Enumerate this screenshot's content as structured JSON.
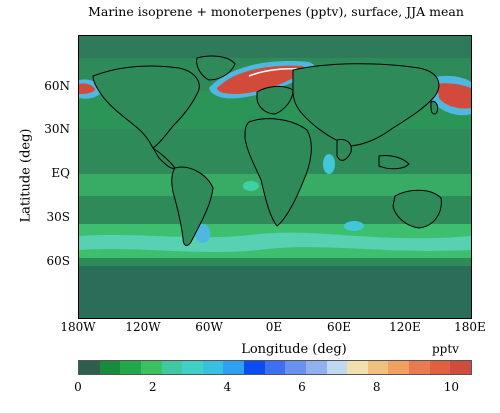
{
  "title": "Marine isoprene + monoterpenes (pptv), surface, JJA mean",
  "x_axis": {
    "label": "Longitude (deg)",
    "ticks": [
      "180W",
      "120W",
      "60W",
      "0E",
      "60E",
      "120E",
      "180E"
    ]
  },
  "y_axis": {
    "label": "Latitude (deg)",
    "ticks": [
      "60N",
      "30N",
      "EQ",
      "30S",
      "60S"
    ]
  },
  "colorbar": {
    "unit": "pptv",
    "ticks": [
      "0",
      "2",
      "4",
      "6",
      "8",
      "10"
    ],
    "min": 0,
    "max": 10.5,
    "colors": [
      "#2e5e4e",
      "#1a8a3c",
      "#22a84a",
      "#3cc060",
      "#40c8a0",
      "#40d0c8",
      "#38c0e0",
      "#30a0f0",
      "#0a4cf0",
      "#3c70f0",
      "#6a90f0",
      "#90b0f0",
      "#c0d8f0",
      "#f0e0b0",
      "#f0c080",
      "#f0a060",
      "#e87c50",
      "#e06040",
      "#d04c3c"
    ]
  },
  "colors": {
    "ocean_background": "#2f8a5a",
    "band_light": "#3cc070",
    "band_cyan": "#5fd4c4",
    "high_red": "#d24a3a",
    "coast_line": "#000000"
  }
}
